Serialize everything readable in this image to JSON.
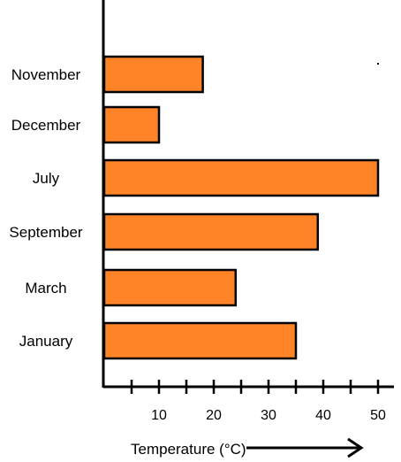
{
  "chart_data": {
    "type": "bar",
    "orientation": "horizontal",
    "categories": [
      "November",
      "December",
      "July",
      "September",
      "March",
      "January"
    ],
    "values": [
      18,
      10,
      50,
      39,
      24,
      35
    ],
    "ticks": [
      10,
      20,
      30,
      40,
      50
    ],
    "xlabel": "Temperature (°C)",
    "xlim": [
      0,
      53
    ],
    "grid": false,
    "bar_color": "#FF8427",
    "bar_stroke": "#000000"
  }
}
